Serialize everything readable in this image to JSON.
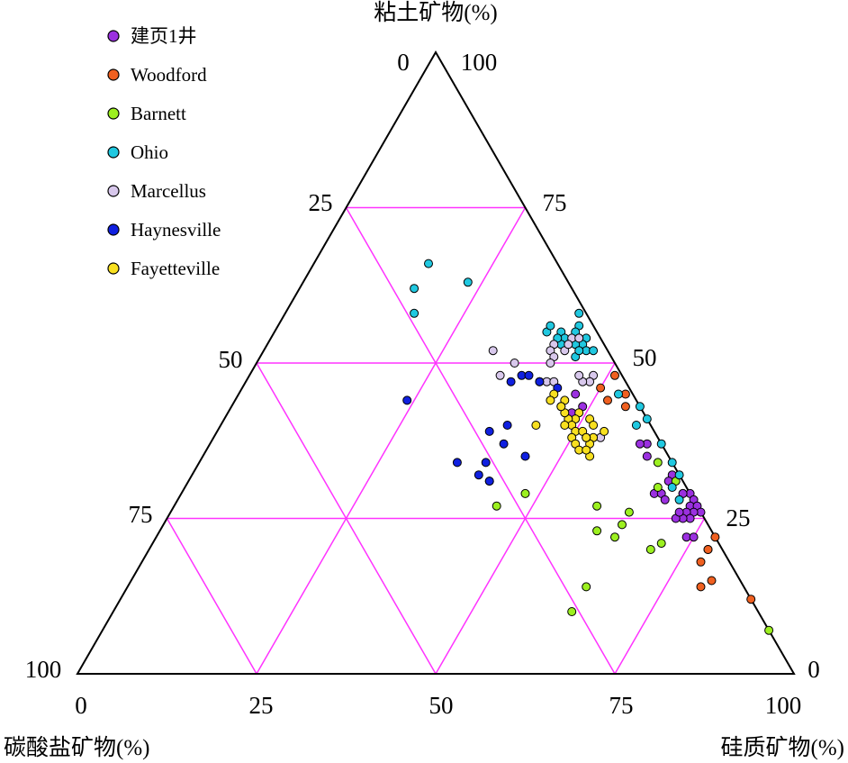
{
  "chart_data": {
    "type": "scatter",
    "subtype": "ternary",
    "axes": {
      "top": {
        "label": "粘土矿物(%)"
      },
      "left": {
        "label": "碳酸盐矿物(%)"
      },
      "right": {
        "label": "硅质矿物(%)"
      }
    },
    "tick_labels": {
      "top_apex": [
        "0",
        "100"
      ],
      "left_edge": [
        "25",
        "50",
        "75"
      ],
      "right_edge": [
        "75",
        "50",
        "25"
      ],
      "left_corner": "100",
      "right_corner": "0",
      "bottom": [
        "0",
        "25",
        "50",
        "75",
        "100"
      ]
    },
    "grid": true,
    "grid_color": "#ff33ff",
    "legend": {
      "placement": "top-left"
    },
    "series": [
      {
        "name": "建页1井",
        "color": "#9b30e0",
        "points": [
          [
            29,
            0,
            71
          ],
          [
            37,
            2,
            61
          ],
          [
            37,
            3,
            60
          ],
          [
            35,
            3,
            62
          ],
          [
            32,
            1,
            67
          ],
          [
            31,
            2,
            67
          ],
          [
            29,
            1,
            70
          ],
          [
            29,
            1,
            70
          ],
          [
            28,
            0,
            72
          ],
          [
            27,
            1,
            72
          ],
          [
            27,
            0,
            73
          ],
          [
            26,
            0,
            74
          ],
          [
            26,
            1,
            73
          ],
          [
            26,
            2,
            72
          ],
          [
            25,
            2,
            73
          ],
          [
            25,
            3,
            72
          ],
          [
            25,
            4,
            71
          ],
          [
            26,
            3,
            71
          ],
          [
            29,
            5,
            66
          ],
          [
            29,
            4,
            67
          ],
          [
            28,
            4,
            68
          ],
          [
            22,
            4,
            74
          ],
          [
            22,
            3,
            75
          ],
          [
            20,
            2,
            78
          ],
          [
            45,
            8,
            47
          ],
          [
            43,
            8,
            49
          ],
          [
            42,
            10,
            48
          ]
        ]
      },
      {
        "name": "Woodford",
        "color": "#f06020",
        "points": [
          [
            48,
            1,
            51
          ],
          [
            45,
            1,
            54
          ],
          [
            43,
            2,
            55
          ],
          [
            46,
            4,
            50
          ],
          [
            44,
            4,
            52
          ],
          [
            22,
            0,
            78
          ],
          [
            20,
            2,
            78
          ],
          [
            18,
            4,
            78
          ],
          [
            15,
            4,
            81
          ],
          [
            12,
            0,
            88
          ],
          [
            14,
            6,
            80
          ]
        ]
      },
      {
        "name": "Barnett",
        "color": "#9cf020",
        "points": [
          [
            34,
            2,
            64
          ],
          [
            31,
            1,
            68
          ],
          [
            30,
            4,
            66
          ],
          [
            26,
            10,
            64
          ],
          [
            24,
            12,
            64
          ],
          [
            23,
            16,
            61
          ],
          [
            22,
            14,
            64
          ],
          [
            14,
            22,
            64
          ],
          [
            10,
            26,
            64
          ],
          [
            7,
            0,
            93
          ],
          [
            27,
            14,
            59
          ],
          [
            27,
            28,
            45
          ],
          [
            29,
            23,
            48
          ],
          [
            20,
            10,
            70
          ],
          [
            21,
            8,
            71
          ]
        ]
      },
      {
        "name": "Ohio",
        "color": "#20c8e0",
        "points": [
          [
            58,
            1,
            41
          ],
          [
            56,
            2,
            42
          ],
          [
            55,
            3,
            42
          ],
          [
            54,
            2,
            44
          ],
          [
            54,
            3,
            43
          ],
          [
            53,
            3,
            44
          ],
          [
            53,
            4,
            43
          ],
          [
            52,
            3,
            45
          ],
          [
            52,
            2,
            46
          ],
          [
            55,
            5,
            40
          ],
          [
            54,
            5,
            41
          ],
          [
            53,
            6,
            41
          ],
          [
            54,
            6,
            40
          ],
          [
            51,
            5,
            44
          ],
          [
            55,
            7,
            38
          ],
          [
            52,
            4,
            44
          ],
          [
            56,
            6,
            38
          ],
          [
            63,
            14,
            23
          ],
          [
            66,
            18,
            16
          ],
          [
            62,
            22,
            16
          ],
          [
            58,
            24,
            18
          ],
          [
            45,
            2,
            53
          ],
          [
            43,
            0,
            57
          ],
          [
            41,
            0,
            59
          ],
          [
            40,
            2,
            58
          ],
          [
            37,
            0,
            63
          ],
          [
            34,
            0,
            66
          ],
          [
            30,
            2,
            68
          ],
          [
            32,
            0,
            68
          ],
          [
            28,
            2,
            70
          ]
        ]
      },
      {
        "name": "Marcellus",
        "color": "#d8c8ec",
        "points": [
          [
            47,
            11,
            42
          ],
          [
            47,
            12,
            41
          ],
          [
            47,
            10,
            43
          ],
          [
            50,
            14,
            36
          ],
          [
            52,
            16,
            32
          ],
          [
            53,
            7,
            40
          ],
          [
            52,
            6,
            42
          ],
          [
            54,
            4,
            42
          ],
          [
            54,
            3,
            43
          ],
          [
            53,
            5,
            42
          ],
          [
            52,
            8,
            40
          ],
          [
            51,
            8,
            41
          ],
          [
            50,
            9,
            41
          ],
          [
            48,
            4,
            48
          ],
          [
            47,
            5,
            48
          ],
          [
            47,
            6,
            47
          ],
          [
            48,
            6,
            46
          ],
          [
            38,
            8,
            54
          ],
          [
            48,
            17,
            35
          ]
        ]
      },
      {
        "name": "Haynesville",
        "color": "#1020e0",
        "points": [
          [
            48,
            14,
            38
          ],
          [
            47,
            12,
            41
          ],
          [
            48,
            13,
            39
          ],
          [
            46,
            10,
            44
          ],
          [
            47,
            16,
            37
          ],
          [
            44,
            32,
            24
          ],
          [
            39,
            23,
            38
          ],
          [
            37,
            22,
            41
          ],
          [
            34,
            30,
            36
          ],
          [
            34,
            26,
            40
          ],
          [
            35,
            20,
            45
          ],
          [
            31,
            27,
            42
          ],
          [
            31,
            27,
            42
          ],
          [
            32,
            28,
            40
          ],
          [
            40,
            20,
            40
          ]
        ]
      },
      {
        "name": "Fayetteville",
        "color": "#f8e020",
        "points": [
          [
            45,
            11,
            44
          ],
          [
            44,
            10,
            46
          ],
          [
            43,
            11,
            46
          ],
          [
            42,
            9,
            49
          ],
          [
            41,
            10,
            49
          ],
          [
            41,
            11,
            48
          ],
          [
            40,
            11,
            49
          ],
          [
            40,
            12,
            48
          ],
          [
            39,
            11,
            50
          ],
          [
            38,
            12,
            50
          ],
          [
            37,
            12,
            51
          ],
          [
            36,
            12,
            52
          ],
          [
            35,
            11,
            54
          ],
          [
            42,
            11,
            47
          ],
          [
            43,
            11,
            46
          ],
          [
            41,
            8,
            51
          ],
          [
            40,
            8,
            52
          ],
          [
            39,
            7,
            54
          ],
          [
            38,
            9,
            53
          ],
          [
            37,
            10,
            53
          ],
          [
            36,
            11,
            53
          ],
          [
            39,
            10,
            51
          ],
          [
            38,
            10,
            52
          ],
          [
            44,
            12,
            44
          ],
          [
            40,
            16,
            44
          ],
          [
            38,
            10,
            52
          ]
        ]
      }
    ]
  }
}
